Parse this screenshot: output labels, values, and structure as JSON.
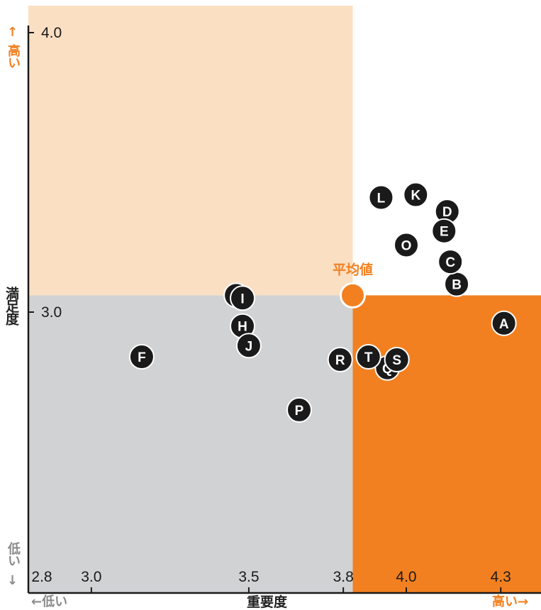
{
  "chart_data": {
    "type": "scatter",
    "title": "",
    "xlabel": "重要度",
    "ylabel": "満足度",
    "xlim": [
      2.8,
      4.35
    ],
    "ylim": [
      2.0,
      4.0
    ],
    "x_ticks": [
      2.8,
      3.0,
      3.5,
      3.8,
      4.0,
      4.3
    ],
    "x_tick_labels": [
      "2.8",
      "3.0",
      "3.5",
      "3.8",
      "4.0",
      "4.3"
    ],
    "y_ticks": [
      3.0,
      4.0
    ],
    "y_tick_labels": [
      "3.0",
      "4.0"
    ],
    "average": {
      "label": "平均値",
      "x": 3.83,
      "y": 3.06
    },
    "points": [
      {
        "label": "A",
        "x": 4.31,
        "y": 2.96
      },
      {
        "label": "B",
        "x": 4.16,
        "y": 3.1
      },
      {
        "label": "C",
        "x": 4.14,
        "y": 3.18
      },
      {
        "label": "D",
        "x": 4.13,
        "y": 3.36
      },
      {
        "label": "E",
        "x": 4.12,
        "y": 3.29
      },
      {
        "label": "F",
        "x": 3.16,
        "y": 2.84
      },
      {
        "label": "G",
        "x": 3.46,
        "y": 3.06
      },
      {
        "label": "I",
        "x": 3.48,
        "y": 3.05
      },
      {
        "label": "H",
        "x": 3.48,
        "y": 2.95
      },
      {
        "label": "J",
        "x": 3.5,
        "y": 2.88
      },
      {
        "label": "K",
        "x": 4.03,
        "y": 3.42
      },
      {
        "label": "L",
        "x": 3.92,
        "y": 3.41
      },
      {
        "label": "O",
        "x": 4.0,
        "y": 3.24
      },
      {
        "label": "P",
        "x": 3.66,
        "y": 2.65
      },
      {
        "label": "Q",
        "x": 3.94,
        "y": 2.8
      },
      {
        "label": "R",
        "x": 3.79,
        "y": 2.83
      },
      {
        "label": "S",
        "x": 3.97,
        "y": 2.83
      },
      {
        "label": "T",
        "x": 3.88,
        "y": 2.84
      }
    ],
    "grid": false,
    "legend": "none",
    "colors": {
      "upper_left": "#fbdfc3",
      "lower_left": "#d1d2d4",
      "lower_right": "#f38020",
      "upper_right": "#ffffff",
      "points": "#1a1a1a",
      "average": "#f38020",
      "axis": "#1a1a1a"
    }
  },
  "axis_annotations": {
    "y_high_arrow": "↑",
    "y_high": "高い",
    "y_low": "低い",
    "y_low_arrow": "↓",
    "x_low": "←低い",
    "x_high": "高い→"
  }
}
